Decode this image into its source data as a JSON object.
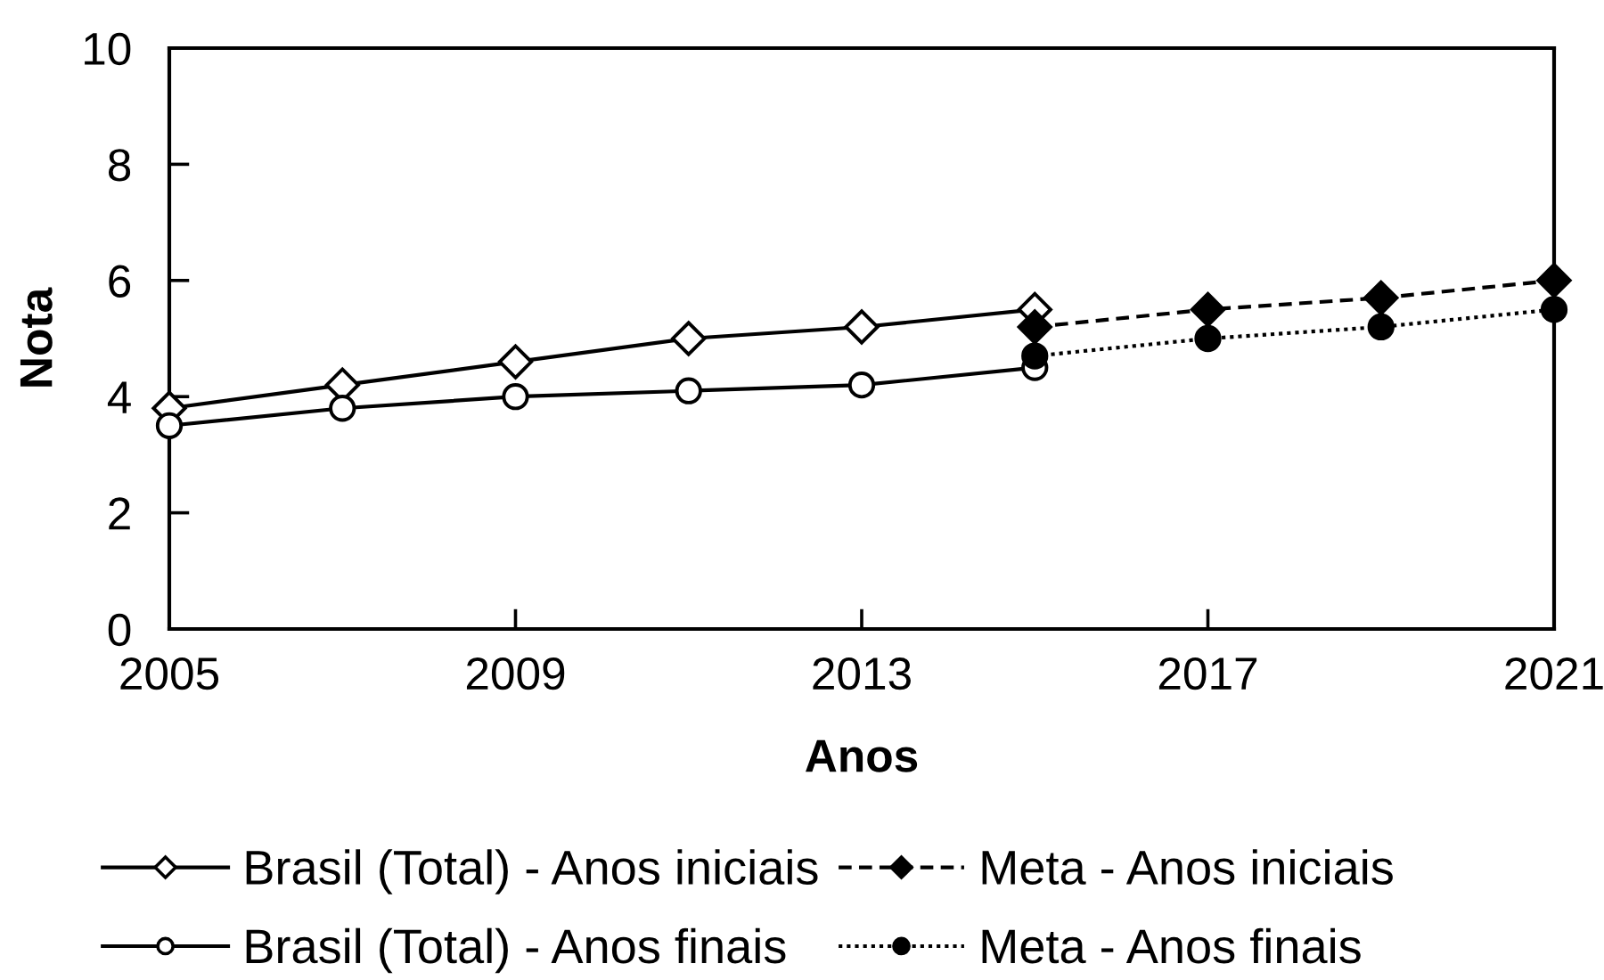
{
  "chart_data": {
    "type": "line",
    "xlabel": "Anos",
    "ylabel": "Nota",
    "xlim": [
      2005,
      2021
    ],
    "xticks": [
      2005,
      2009,
      2013,
      2017,
      2021
    ],
    "ylim": [
      0,
      10
    ],
    "yticks": [
      0,
      2,
      4,
      6,
      8,
      10
    ],
    "grid": false,
    "legend": "bottom",
    "series": [
      {
        "name": "Brasil (Total) - Anos iniciais",
        "color": "#000000",
        "colors": [
          "#ffffff",
          "#ffffff",
          "#ffffff",
          "#ffffff",
          "#ffffff",
          "#ffffff"
        ],
        "marker": "diamond",
        "line_style": "solid",
        "x": [
          2005,
          2007,
          2009,
          2011,
          2013,
          2015
        ],
        "values": [
          3.8,
          4.2,
          4.6,
          5.0,
          5.2,
          5.5
        ]
      },
      {
        "name": "Brasil (Total) - Anos finais",
        "color": "#000000",
        "colors": [
          "#ffffff",
          "#ffffff",
          "#ffffff",
          "#ffffff",
          "#ffffff",
          "#ffffff"
        ],
        "marker": "circle",
        "line_style": "solid",
        "x": [
          2005,
          2007,
          2009,
          2011,
          2013,
          2015
        ],
        "values": [
          3.5,
          3.8,
          4.0,
          4.1,
          4.2,
          4.5
        ]
      },
      {
        "name": "Meta - Anos iniciais",
        "color": "#000000",
        "colors": [
          "#000000",
          "#000000",
          "#000000",
          "#000000"
        ],
        "marker": "diamond",
        "line_style": "dashed",
        "x": [
          2015,
          2017,
          2019,
          2021
        ],
        "values": [
          5.2,
          5.5,
          5.7,
          6.0
        ]
      },
      {
        "name": "Meta - Anos finais",
        "color": "#000000",
        "colors": [
          "#000000",
          "#000000",
          "#000000",
          "#000000"
        ],
        "marker": "circle",
        "line_style": "dotted",
        "x": [
          2015,
          2017,
          2019,
          2021
        ],
        "values": [
          4.7,
          5.0,
          5.2,
          5.5
        ]
      }
    ]
  }
}
